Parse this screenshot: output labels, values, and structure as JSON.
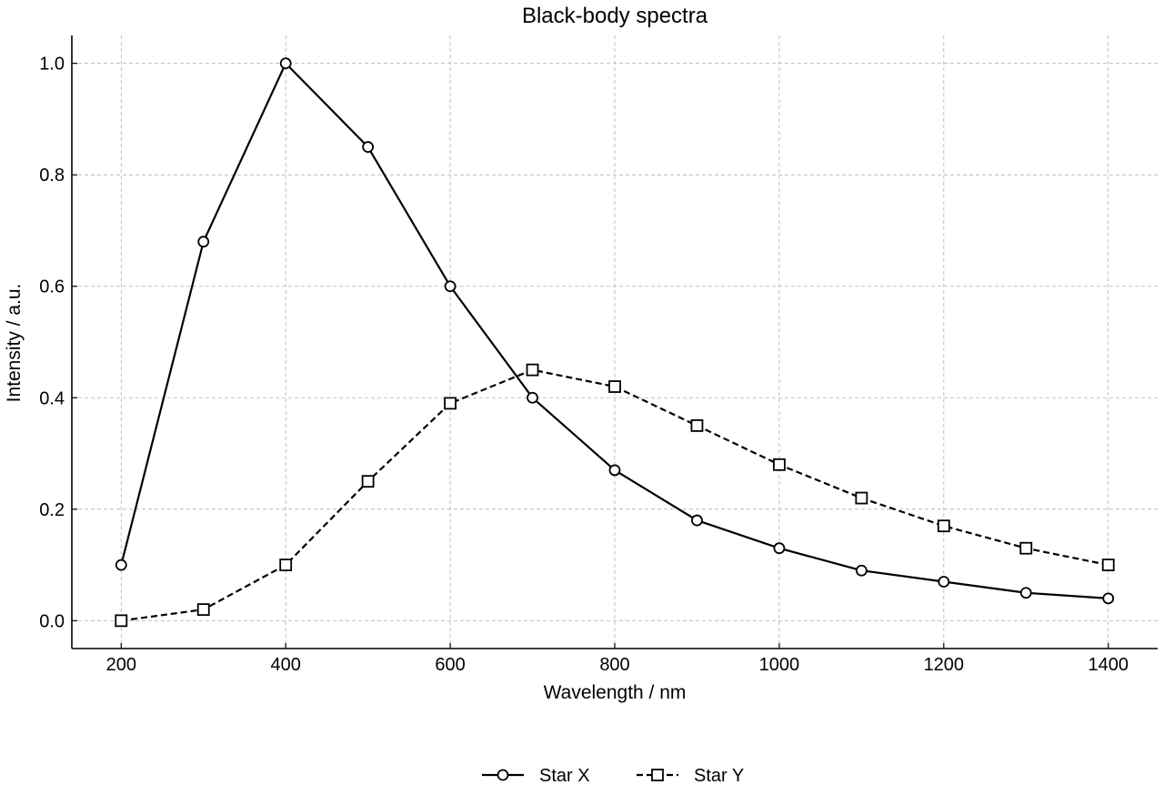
{
  "chart_data": {
    "type": "line",
    "title": "Black-body spectra",
    "xlabel": "Wavelength / nm",
    "ylabel": "Intensity / a.u.",
    "xlim": [
      140,
      1460
    ],
    "ylim": [
      -0.05,
      1.05
    ],
    "xticks": [
      200,
      400,
      600,
      800,
      1000,
      1200,
      1400
    ],
    "yticks": [
      0.0,
      0.2,
      0.4,
      0.6,
      0.8,
      1.0
    ],
    "grid": true,
    "legend_position": "bottom-center",
    "x": [
      200,
      300,
      400,
      500,
      600,
      700,
      800,
      900,
      1000,
      1100,
      1200,
      1300,
      1400
    ],
    "series": [
      {
        "name": "Star X",
        "marker": "circle",
        "line_style": "solid",
        "color": "#000000",
        "values": [
          0.1,
          0.68,
          1.0,
          0.85,
          0.6,
          0.4,
          0.27,
          0.18,
          0.13,
          0.09,
          0.07,
          0.05,
          0.04
        ]
      },
      {
        "name": "Star Y",
        "marker": "square",
        "line_style": "dashed",
        "color": "#000000",
        "values": [
          0.0,
          0.02,
          0.1,
          0.25,
          0.39,
          0.45,
          0.42,
          0.35,
          0.28,
          0.22,
          0.17,
          0.13,
          0.1
        ]
      }
    ]
  }
}
